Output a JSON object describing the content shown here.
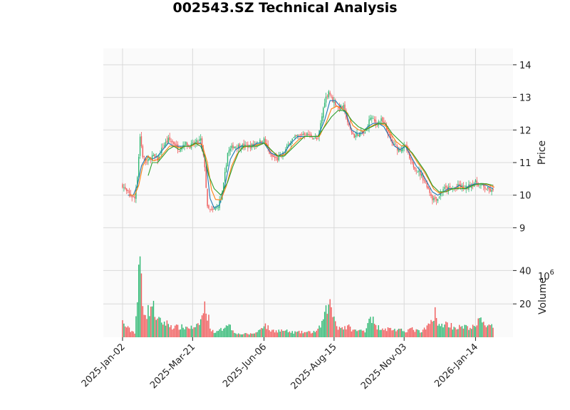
{
  "chart_data": {
    "type": "candlestick",
    "title": "002543.SZ Technical Analysis",
    "price_panel": {
      "ylabel": "Price",
      "ylim": [
        8.2,
        14.5
      ],
      "yticks": [
        9,
        10,
        11,
        12,
        13,
        14
      ]
    },
    "volume_panel": {
      "ylabel": "Volume",
      "yexponent": "10",
      "yexponent_power": "6",
      "ylim": [
        0,
        50
      ],
      "yticks": [
        20,
        40
      ],
      "units": "millions"
    },
    "x_ticks": [
      {
        "label": "2025-Jan-02",
        "index": 0
      },
      {
        "label": "2025-Mar-21",
        "index": 52
      },
      {
        "label": "2025-Jun-06",
        "index": 105
      },
      {
        "label": "2025-Aug-15",
        "index": 157
      },
      {
        "label": "2025-Nov-03",
        "index": 209
      },
      {
        "label": "2026-Jan-14",
        "index": 262
      }
    ],
    "n_bars": 276,
    "close_path": [
      [
        0,
        10.3
      ],
      [
        3,
        10.1
      ],
      [
        6,
        10.0
      ],
      [
        9,
        9.9
      ],
      [
        11,
        10.6
      ],
      [
        13,
        11.8
      ],
      [
        15,
        11.2
      ],
      [
        18,
        11.0
      ],
      [
        22,
        11.2
      ],
      [
        26,
        11.1
      ],
      [
        30,
        11.5
      ],
      [
        34,
        11.7
      ],
      [
        38,
        11.6
      ],
      [
        42,
        11.4
      ],
      [
        46,
        11.6
      ],
      [
        50,
        11.5
      ],
      [
        54,
        11.6
      ],
      [
        58,
        11.7
      ],
      [
        61,
        10.9
      ],
      [
        63,
        9.6
      ],
      [
        66,
        9.5
      ],
      [
        70,
        9.6
      ],
      [
        74,
        10.0
      ],
      [
        78,
        11.3
      ],
      [
        82,
        11.5
      ],
      [
        86,
        11.5
      ],
      [
        90,
        11.5
      ],
      [
        95,
        11.5
      ],
      [
        100,
        11.6
      ],
      [
        105,
        11.7
      ],
      [
        110,
        11.2
      ],
      [
        115,
        11.1
      ],
      [
        120,
        11.3
      ],
      [
        125,
        11.7
      ],
      [
        130,
        11.8
      ],
      [
        135,
        11.9
      ],
      [
        140,
        11.8
      ],
      [
        145,
        11.7
      ],
      [
        150,
        12.9
      ],
      [
        153,
        13.2
      ],
      [
        156,
        12.9
      ],
      [
        160,
        12.7
      ],
      [
        164,
        12.7
      ],
      [
        168,
        12.1
      ],
      [
        172,
        11.8
      ],
      [
        176,
        11.9
      ],
      [
        180,
        11.9
      ],
      [
        184,
        12.4
      ],
      [
        188,
        12.2
      ],
      [
        192,
        12.3
      ],
      [
        196,
        12.0
      ],
      [
        200,
        11.6
      ],
      [
        205,
        11.4
      ],
      [
        210,
        11.5
      ],
      [
        214,
        11.0
      ],
      [
        218,
        10.8
      ],
      [
        222,
        10.6
      ],
      [
        226,
        10.3
      ],
      [
        230,
        9.9
      ],
      [
        234,
        9.9
      ],
      [
        238,
        10.2
      ],
      [
        242,
        10.2
      ],
      [
        246,
        10.2
      ],
      [
        250,
        10.3
      ],
      [
        254,
        10.2
      ],
      [
        258,
        10.3
      ],
      [
        262,
        10.4
      ],
      [
        266,
        10.3
      ],
      [
        270,
        10.2
      ],
      [
        275,
        10.1
      ]
    ],
    "sma_short_path": [
      [
        4,
        10.0
      ],
      [
        8,
        10.0
      ],
      [
        11,
        10.3
      ],
      [
        14,
        10.9
      ],
      [
        18,
        11.2
      ],
      [
        22,
        11.1
      ],
      [
        26,
        11.2
      ],
      [
        30,
        11.4
      ],
      [
        34,
        11.6
      ],
      [
        38,
        11.5
      ],
      [
        42,
        11.5
      ],
      [
        46,
        11.5
      ],
      [
        50,
        11.5
      ],
      [
        54,
        11.6
      ],
      [
        58,
        11.6
      ],
      [
        62,
        11.0
      ],
      [
        65,
        9.9
      ],
      [
        68,
        9.6
      ],
      [
        72,
        9.7
      ],
      [
        76,
        10.3
      ],
      [
        80,
        11.1
      ],
      [
        84,
        11.4
      ],
      [
        88,
        11.5
      ],
      [
        92,
        11.5
      ],
      [
        96,
        11.5
      ],
      [
        100,
        11.6
      ],
      [
        105,
        11.6
      ],
      [
        110,
        11.3
      ],
      [
        115,
        11.2
      ],
      [
        120,
        11.3
      ],
      [
        125,
        11.6
      ],
      [
        130,
        11.8
      ],
      [
        135,
        11.8
      ],
      [
        140,
        11.8
      ],
      [
        145,
        11.8
      ],
      [
        150,
        12.3
      ],
      [
        154,
        12.9
      ],
      [
        158,
        12.9
      ],
      [
        162,
        12.7
      ],
      [
        166,
        12.5
      ],
      [
        170,
        12.0
      ],
      [
        174,
        11.9
      ],
      [
        178,
        11.9
      ],
      [
        182,
        12.1
      ],
      [
        186,
        12.2
      ],
      [
        190,
        12.2
      ],
      [
        194,
        12.1
      ],
      [
        198,
        11.8
      ],
      [
        202,
        11.5
      ],
      [
        206,
        11.4
      ],
      [
        210,
        11.5
      ],
      [
        214,
        11.2
      ],
      [
        218,
        10.9
      ],
      [
        222,
        10.7
      ],
      [
        226,
        10.4
      ],
      [
        230,
        10.1
      ],
      [
        234,
        10.0
      ],
      [
        238,
        10.1
      ],
      [
        242,
        10.2
      ],
      [
        246,
        10.2
      ],
      [
        250,
        10.3
      ],
      [
        254,
        10.2
      ],
      [
        258,
        10.3
      ],
      [
        262,
        10.35
      ],
      [
        266,
        10.35
      ],
      [
        270,
        10.3
      ],
      [
        275,
        10.2
      ]
    ],
    "sma_long_path": [
      [
        19,
        10.6
      ],
      [
        22,
        11.0
      ],
      [
        26,
        11.0
      ],
      [
        30,
        11.2
      ],
      [
        34,
        11.4
      ],
      [
        38,
        11.5
      ],
      [
        42,
        11.4
      ],
      [
        46,
        11.5
      ],
      [
        50,
        11.5
      ],
      [
        54,
        11.6
      ],
      [
        58,
        11.5
      ],
      [
        61,
        11.2
      ],
      [
        64,
        10.6
      ],
      [
        68,
        10.2
      ],
      [
        73,
        10.0
      ],
      [
        78,
        10.4
      ],
      [
        82,
        10.9
      ],
      [
        86,
        11.3
      ],
      [
        90,
        11.5
      ],
      [
        95,
        11.5
      ],
      [
        100,
        11.5
      ],
      [
        105,
        11.6
      ],
      [
        110,
        11.4
      ],
      [
        115,
        11.2
      ],
      [
        120,
        11.2
      ],
      [
        125,
        11.4
      ],
      [
        130,
        11.6
      ],
      [
        135,
        11.8
      ],
      [
        140,
        11.8
      ],
      [
        145,
        11.8
      ],
      [
        150,
        12.1
      ],
      [
        155,
        12.4
      ],
      [
        160,
        12.6
      ],
      [
        165,
        12.6
      ],
      [
        170,
        12.3
      ],
      [
        175,
        12.1
      ],
      [
        180,
        12.0
      ],
      [
        185,
        12.1
      ],
      [
        190,
        12.2
      ],
      [
        195,
        12.2
      ],
      [
        200,
        11.9
      ],
      [
        205,
        11.7
      ],
      [
        210,
        11.5
      ],
      [
        215,
        11.3
      ],
      [
        220,
        11.0
      ],
      [
        225,
        10.7
      ],
      [
        230,
        10.3
      ],
      [
        235,
        10.1
      ],
      [
        240,
        10.1
      ],
      [
        245,
        10.2
      ],
      [
        250,
        10.2
      ],
      [
        255,
        10.2
      ],
      [
        260,
        10.3
      ],
      [
        265,
        10.35
      ],
      [
        270,
        10.35
      ],
      [
        275,
        10.3
      ]
    ],
    "volume_path": [
      [
        0,
        9
      ],
      [
        3,
        6
      ],
      [
        6,
        4
      ],
      [
        9,
        3
      ],
      [
        11,
        22
      ],
      [
        13,
        48
      ],
      [
        15,
        20
      ],
      [
        18,
        14
      ],
      [
        22,
        20
      ],
      [
        26,
        10
      ],
      [
        30,
        9
      ],
      [
        34,
        8
      ],
      [
        38,
        6
      ],
      [
        42,
        6
      ],
      [
        46,
        6
      ],
      [
        50,
        6
      ],
      [
        54,
        5
      ],
      [
        58,
        10
      ],
      [
        61,
        18
      ],
      [
        63,
        14
      ],
      [
        66,
        4
      ],
      [
        70,
        3
      ],
      [
        74,
        5
      ],
      [
        78,
        9
      ],
      [
        82,
        4
      ],
      [
        86,
        2
      ],
      [
        90,
        2
      ],
      [
        95,
        2
      ],
      [
        100,
        3
      ],
      [
        105,
        8
      ],
      [
        110,
        4
      ],
      [
        115,
        4
      ],
      [
        120,
        4
      ],
      [
        125,
        3
      ],
      [
        130,
        3
      ],
      [
        135,
        3
      ],
      [
        140,
        3
      ],
      [
        145,
        4
      ],
      [
        150,
        12
      ],
      [
        153,
        22
      ],
      [
        156,
        14
      ],
      [
        160,
        6
      ],
      [
        164,
        6
      ],
      [
        168,
        6
      ],
      [
        172,
        4
      ],
      [
        176,
        4
      ],
      [
        180,
        4
      ],
      [
        184,
        14
      ],
      [
        188,
        6
      ],
      [
        192,
        6
      ],
      [
        196,
        5
      ],
      [
        200,
        5
      ],
      [
        205,
        4
      ],
      [
        210,
        4
      ],
      [
        214,
        5
      ],
      [
        218,
        4
      ],
      [
        222,
        3
      ],
      [
        226,
        6
      ],
      [
        230,
        10
      ],
      [
        232,
        18
      ],
      [
        234,
        6
      ],
      [
        238,
        8
      ],
      [
        242,
        8
      ],
      [
        246,
        6
      ],
      [
        250,
        6
      ],
      [
        254,
        6
      ],
      [
        258,
        6
      ],
      [
        262,
        6
      ],
      [
        266,
        12
      ],
      [
        270,
        7
      ],
      [
        275,
        6
      ]
    ],
    "colors": {
      "up": "#2eb872",
      "down": "#f05a5a",
      "sma_short": "#1f77b4",
      "sma_mid": "#ff7f0e",
      "sma_long": "#2ca02c",
      "panel_bg": "#fafafa",
      "grid": "#d9d9d9"
    }
  }
}
